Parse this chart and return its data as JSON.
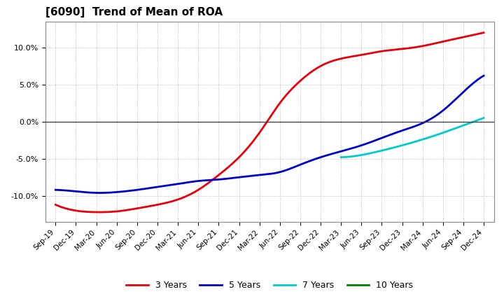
{
  "title": "[6090]  Trend of Mean of ROA",
  "x_labels": [
    "Sep-19",
    "Dec-19",
    "Mar-20",
    "Jun-20",
    "Sep-20",
    "Dec-20",
    "Mar-21",
    "Jun-21",
    "Sep-21",
    "Dec-21",
    "Mar-22",
    "Jun-22",
    "Sep-22",
    "Dec-22",
    "Mar-23",
    "Jun-23",
    "Sep-23",
    "Dec-23",
    "Mar-24",
    "Jun-24",
    "Sep-24",
    "Dec-24"
  ],
  "y_ticks": [
    -10.0,
    -5.0,
    0.0,
    5.0,
    10.0
  ],
  "ylim": [
    -13.5,
    13.5
  ],
  "series": {
    "3 Years": {
      "color": "#e8000b",
      "values": [
        -11.2,
        -12.0,
        -12.2,
        -12.1,
        -11.7,
        -11.2,
        -10.5,
        -9.2,
        -7.2,
        -4.8,
        -1.5,
        2.5,
        5.5,
        7.5,
        8.5,
        9.0,
        9.5,
        9.8,
        10.2,
        10.8,
        11.4,
        12.0
      ]
    },
    "5 Years": {
      "color": "#0000cc",
      "values": [
        -9.2,
        -9.4,
        -9.6,
        -9.5,
        -9.2,
        -8.8,
        -8.4,
        -8.0,
        -7.8,
        -7.5,
        -7.2,
        -6.8,
        -5.8,
        -4.8,
        -4.0,
        -3.2,
        -2.2,
        -1.2,
        -0.2,
        1.5,
        4.0,
        6.2
      ]
    },
    "7 Years": {
      "color": "#00cccc",
      "values": [
        null,
        null,
        null,
        null,
        null,
        null,
        null,
        null,
        null,
        null,
        null,
        null,
        null,
        null,
        -4.8,
        -4.5,
        -3.9,
        -3.2,
        -2.4,
        -1.5,
        -0.5,
        0.5
      ]
    },
    "10 Years": {
      "color": "#008000",
      "values": [
        null,
        null,
        null,
        null,
        null,
        null,
        null,
        null,
        null,
        null,
        null,
        null,
        null,
        null,
        null,
        null,
        null,
        null,
        null,
        null,
        null,
        null
      ]
    }
  },
  "background_color": "#ffffff",
  "grid_color": "#999999",
  "zero_line_color": "#444444",
  "figsize": [
    7.2,
    4.4
  ],
  "dpi": 100
}
